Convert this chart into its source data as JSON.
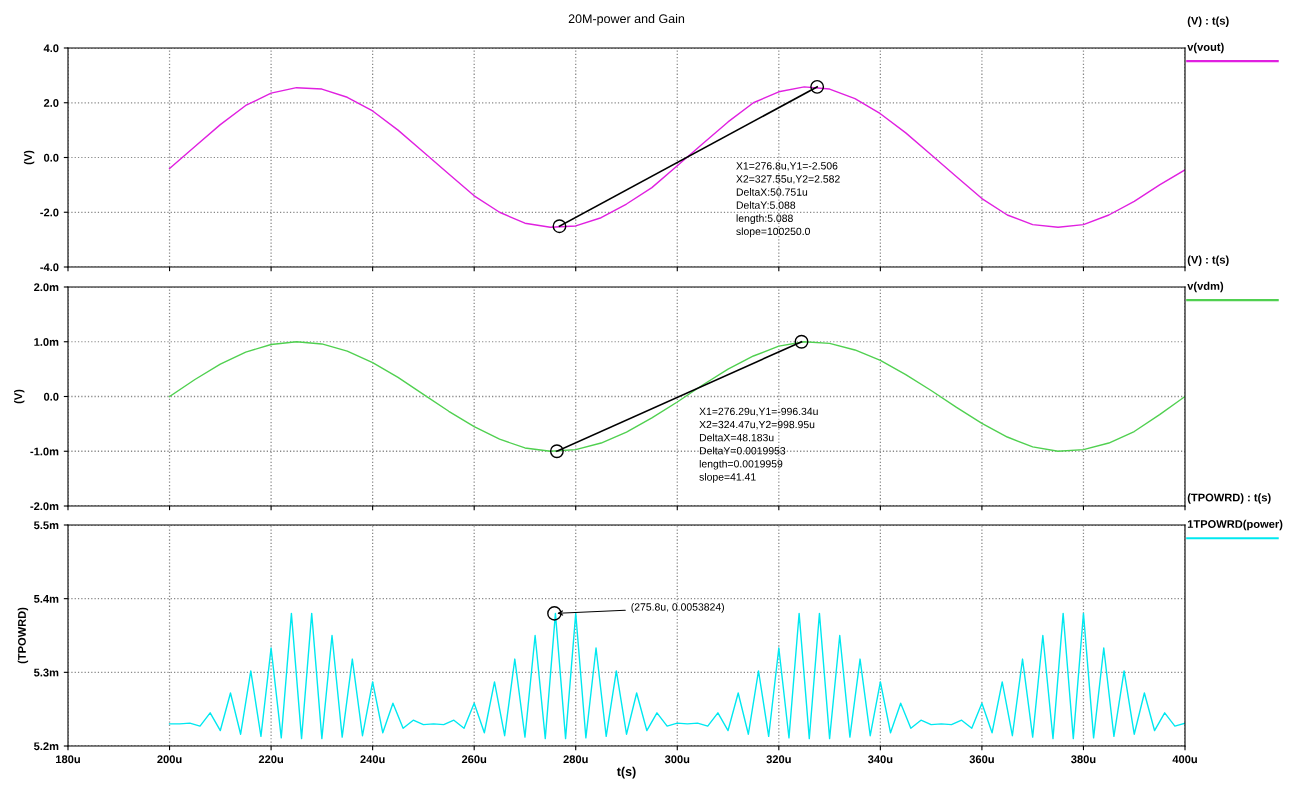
{
  "chart_data": [
    {
      "type": "line",
      "title": "20M-power and Gain",
      "ylabel": "(V)",
      "legend_title": "(V) : t(s)",
      "legend": "right",
      "grid": true,
      "tick_labels": "y",
      "xlim": [
        180,
        400
      ],
      "xticks": [
        {
          "value": 180,
          "label": null
        },
        {
          "value": 200,
          "label": null
        },
        {
          "value": 220,
          "label": null
        },
        {
          "value": 240,
          "label": null
        },
        {
          "value": 260,
          "label": null
        },
        {
          "value": 280,
          "label": null
        },
        {
          "value": 300,
          "label": null
        },
        {
          "value": 320,
          "label": null
        },
        {
          "value": 340,
          "label": null
        },
        {
          "value": 360,
          "label": null
        },
        {
          "value": 380,
          "label": null
        },
        {
          "value": 400,
          "label": null
        }
      ],
      "ylim": [
        -4,
        4
      ],
      "yticks": [
        {
          "value": -4,
          "label": "-4.0"
        },
        {
          "value": -2,
          "label": "-2.0"
        },
        {
          "value": 0,
          "label": "0.0"
        },
        {
          "value": 2,
          "label": "2.0"
        },
        {
          "value": 4,
          "label": "4.0"
        }
      ],
      "x": [
        200,
        205,
        210,
        215,
        220,
        225,
        230,
        235,
        240,
        245,
        250,
        255,
        260,
        265,
        270,
        275,
        280,
        285,
        290,
        295,
        300,
        305,
        310,
        315,
        320,
        325,
        330,
        335,
        340,
        345,
        350,
        355,
        360,
        365,
        370,
        375,
        380,
        385,
        390,
        395,
        400
      ],
      "series": [
        {
          "name": "v(vout)",
          "color": "#e020e0",
          "values": [
            -0.4,
            0.4,
            1.2,
            1.9,
            2.35,
            2.55,
            2.5,
            2.2,
            1.7,
            1.0,
            0.2,
            -0.6,
            -1.4,
            -2.0,
            -2.4,
            -2.55,
            -2.5,
            -2.2,
            -1.7,
            -1.1,
            -0.3,
            0.5,
            1.3,
            2.0,
            2.4,
            2.58,
            2.5,
            2.15,
            1.6,
            0.9,
            0.1,
            -0.7,
            -1.5,
            -2.1,
            -2.45,
            -2.55,
            -2.45,
            -2.1,
            -1.6,
            -1.0,
            -0.45
          ]
        },
        {
          "type": "line",
          "color": "#000000",
          "marker": "circle",
          "x": [
            276.8,
            327.55
          ],
          "values": [
            -2.51,
            2.58
          ]
        }
      ],
      "annotations": [
        "X1=276.8u,Y1=-2.506\nX2=327.55u,Y2=2.582\nDeltaX:50.751u\nDeltaY:5.088\nlength:5.088\nslope=100250.0"
      ]
    },
    {
      "type": "line",
      "ylabel": "(V)",
      "legend_title": "(V) : t(s)",
      "legend": "right",
      "grid": true,
      "tick_labels": "y",
      "xlim": [
        180,
        400
      ],
      "xticks": [
        {
          "value": 180,
          "label": null
        },
        {
          "value": 200,
          "label": null
        },
        {
          "value": 220,
          "label": null
        },
        {
          "value": 240,
          "label": null
        },
        {
          "value": 260,
          "label": null
        },
        {
          "value": 280,
          "label": null
        },
        {
          "value": 300,
          "label": null
        },
        {
          "value": 320,
          "label": null
        },
        {
          "value": 340,
          "label": null
        },
        {
          "value": 360,
          "label": null
        },
        {
          "value": 380,
          "label": null
        },
        {
          "value": 400,
          "label": null
        }
      ],
      "ylim": [
        -2,
        2
      ],
      "yticks": [
        {
          "value": -2,
          "label": "-2.0m"
        },
        {
          "value": -1,
          "label": "-1.0m"
        },
        {
          "value": 0,
          "label": "0.0"
        },
        {
          "value": 1,
          "label": "1.0m"
        },
        {
          "value": 2,
          "label": "2.0m"
        }
      ],
      "x": [
        200,
        205,
        210,
        215,
        220,
        225,
        230,
        235,
        240,
        245,
        250,
        255,
        260,
        265,
        270,
        275,
        280,
        285,
        290,
        295,
        300,
        305,
        310,
        315,
        320,
        325,
        330,
        335,
        340,
        345,
        350,
        355,
        360,
        365,
        370,
        375,
        380,
        385,
        390,
        395,
        400
      ],
      "series": [
        {
          "name": "v(vdm)",
          "color": "#50d050",
          "values": [
            0,
            0.31,
            0.59,
            0.81,
            0.95,
            1.0,
            0.96,
            0.83,
            0.62,
            0.35,
            0.04,
            -0.27,
            -0.55,
            -0.78,
            -0.94,
            -1.0,
            -0.97,
            -0.85,
            -0.65,
            -0.39,
            -0.1,
            0.21,
            0.5,
            0.74,
            0.92,
            1.0,
            0.97,
            0.85,
            0.66,
            0.4,
            0.11,
            -0.2,
            -0.49,
            -0.74,
            -0.92,
            -1.0,
            -0.97,
            -0.85,
            -0.64,
            -0.33,
            0
          ]
        },
        {
          "type": "line",
          "color": "#000000",
          "marker": "circle",
          "x": [
            276.29,
            324.47
          ],
          "values": [
            -1.0,
            1.0
          ]
        }
      ],
      "annotations": [
        "X1=276.29u,Y1=-996.34u\nX2=324.47u,Y2=998.95u\nDeltaX=48.183u\nDeltaY=0.0019953\nlength=0.0019959\nslope=41.41"
      ]
    },
    {
      "type": "line",
      "ylabel": "(TPOWRD)",
      "xlabel": "t(s)",
      "legend_title": "(TPOWRD) : t(s)",
      "legend": "right",
      "grid": true,
      "xlim": [
        180,
        400
      ],
      "xticks": [
        {
          "value": 180,
          "label": "180u"
        },
        {
          "value": 200,
          "label": "200u"
        },
        {
          "value": 220,
          "label": "220u"
        },
        {
          "value": 240,
          "label": "240u"
        },
        {
          "value": 260,
          "label": "260u"
        },
        {
          "value": 280,
          "label": "280u"
        },
        {
          "value": 300,
          "label": "300u"
        },
        {
          "value": 320,
          "label": "320u"
        },
        {
          "value": 340,
          "label": "340u"
        },
        {
          "value": 360,
          "label": "360u"
        },
        {
          "value": 380,
          "label": "380u"
        },
        {
          "value": 400,
          "label": "400u"
        }
      ],
      "ylim": [
        5.2,
        5.5
      ],
      "yticks": [
        {
          "value": 5.2,
          "label": "5.2m"
        },
        {
          "value": 5.3,
          "label": "5.3m"
        },
        {
          "value": 5.4,
          "label": "5.4m"
        },
        {
          "value": 5.5,
          "label": "5.5m"
        }
      ],
      "x": [
        200,
        202,
        204,
        206,
        208,
        210,
        212,
        214,
        216,
        218,
        220,
        222,
        224,
        226,
        228,
        230,
        232,
        234,
        236,
        238,
        240,
        242,
        244,
        246,
        248,
        250,
        252,
        254,
        256,
        258,
        260,
        262,
        264,
        266,
        268,
        270,
        272,
        274,
        276,
        278,
        280,
        282,
        284,
        286,
        288,
        290,
        292,
        294,
        296,
        298,
        300,
        302,
        304,
        306,
        308,
        310,
        312,
        314,
        316,
        318,
        320,
        322,
        324,
        326,
        328,
        330,
        332,
        334,
        336,
        338,
        340,
        342,
        344,
        346,
        348,
        350,
        352,
        354,
        356,
        358,
        360,
        362,
        364,
        366,
        368,
        370,
        372,
        374,
        376,
        378,
        380,
        382,
        384,
        386,
        388,
        390,
        392,
        394,
        396,
        398,
        400
      ],
      "series": [
        {
          "name": "1TPOWRD(power)",
          "color": "#00e8f0",
          "values": [
            5.23,
            5.23,
            5.231,
            5.227,
            5.245,
            5.221,
            5.272,
            5.216,
            5.302,
            5.213,
            5.333,
            5.211,
            5.38,
            5.21,
            5.38,
            5.21,
            5.35,
            5.212,
            5.318,
            5.214,
            5.287,
            5.218,
            5.258,
            5.224,
            5.235,
            5.229,
            5.23,
            5.229,
            5.235,
            5.224,
            5.258,
            5.218,
            5.287,
            5.214,
            5.318,
            5.212,
            5.35,
            5.21,
            5.38,
            5.21,
            5.38,
            5.211,
            5.333,
            5.213,
            5.302,
            5.216,
            5.272,
            5.221,
            5.245,
            5.227,
            5.231,
            5.23,
            5.231,
            5.227,
            5.245,
            5.221,
            5.272,
            5.216,
            5.302,
            5.213,
            5.333,
            5.211,
            5.38,
            5.21,
            5.38,
            5.21,
            5.35,
            5.212,
            5.318,
            5.214,
            5.287,
            5.218,
            5.258,
            5.224,
            5.235,
            5.229,
            5.23,
            5.229,
            5.235,
            5.224,
            5.258,
            5.218,
            5.287,
            5.214,
            5.318,
            5.212,
            5.35,
            5.21,
            5.38,
            5.21,
            5.38,
            5.211,
            5.333,
            5.213,
            5.302,
            5.216,
            5.272,
            5.221,
            5.245,
            5.227,
            5.231
          ]
        },
        {
          "type": "scatter",
          "color": "#000000",
          "marker": "circle",
          "x": [
            275.8
          ],
          "values": [
            5.38
          ]
        }
      ],
      "annotations": [
        {
          "text": "(275.8u, 0.0053824)",
          "x": 275.8,
          "y": 5.38
        }
      ]
    }
  ]
}
